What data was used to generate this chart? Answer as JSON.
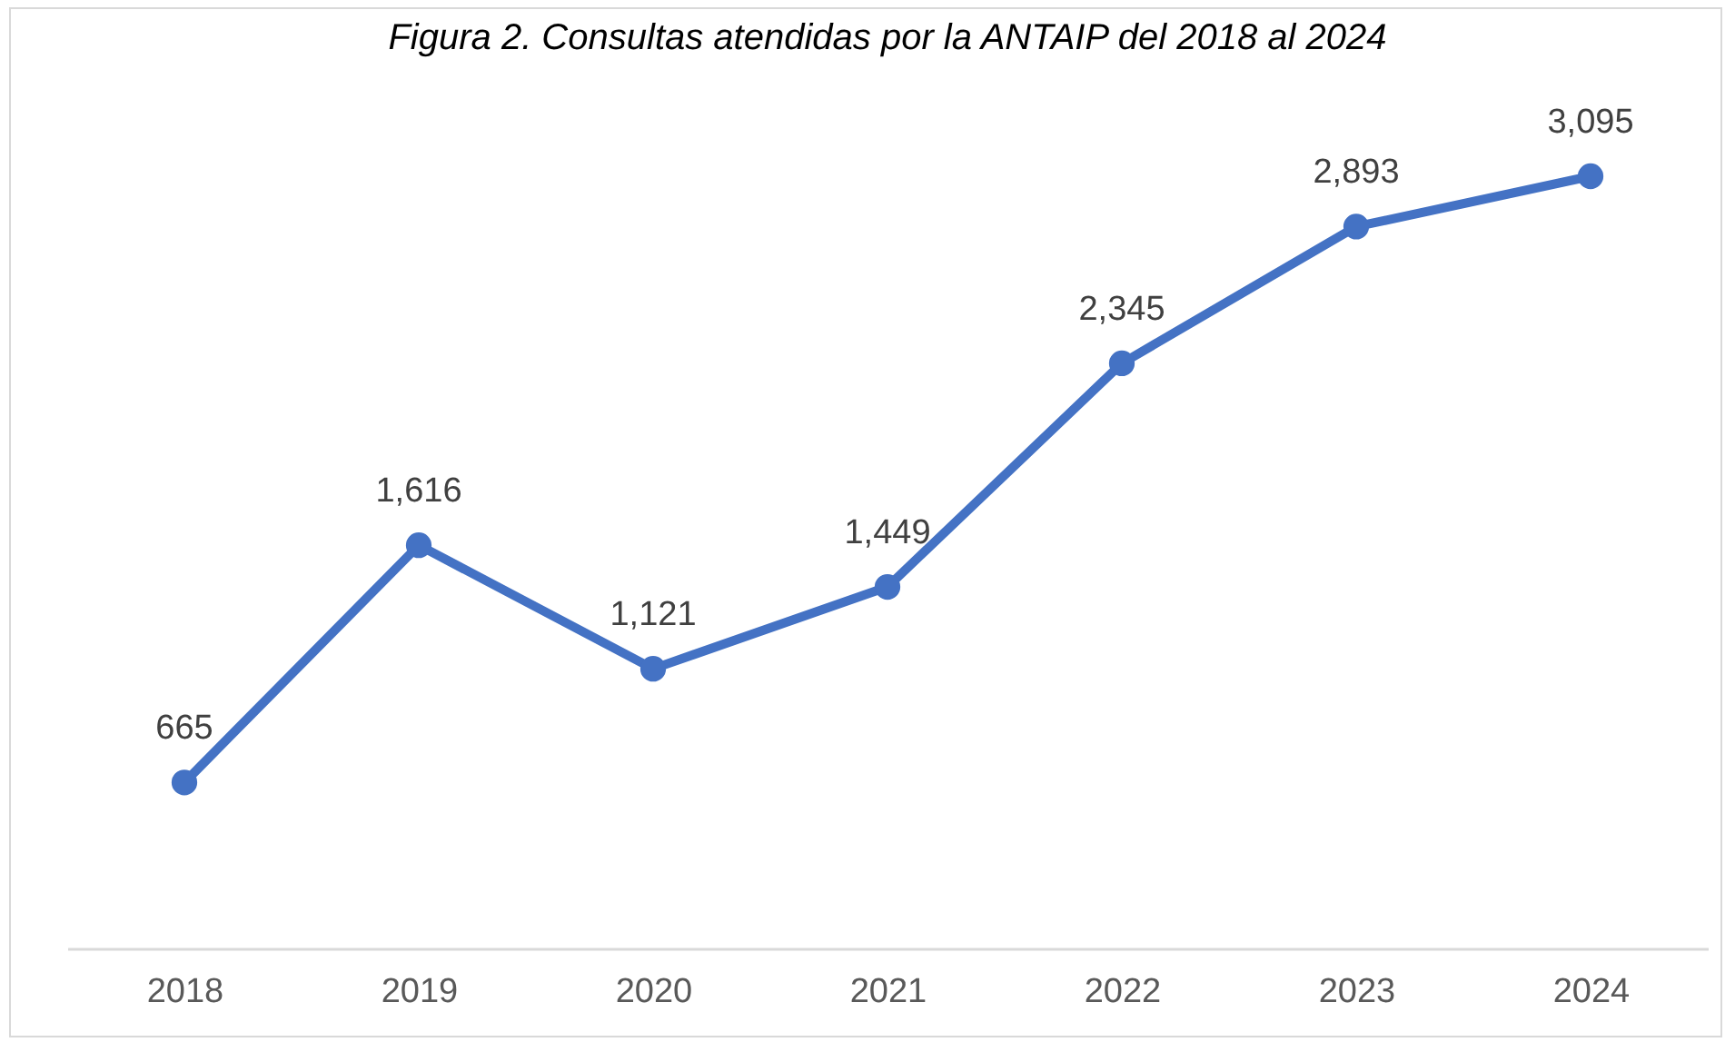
{
  "chart_data": {
    "type": "line",
    "title": "Figura 2. Consultas atendidas por la ANTAIP del 2018 al 2024",
    "categories": [
      "2018",
      "2019",
      "2020",
      "2021",
      "2022",
      "2023",
      "2024"
    ],
    "series": [
      {
        "color": "#4472c4",
        "values": [
          665,
          1616,
          1121,
          1449,
          2345,
          2893,
          3095
        ],
        "value_labels": [
          "665",
          "1,616",
          "1,121",
          "1,449",
          "2,345",
          "2,893",
          "3,095"
        ]
      }
    ],
    "marker": "circle",
    "line_style": "solid",
    "grid": false,
    "legend": false
  }
}
